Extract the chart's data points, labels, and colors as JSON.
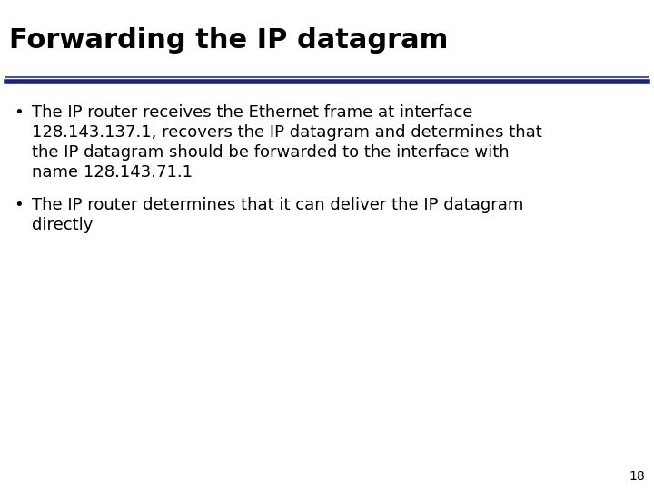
{
  "title": "Forwarding the IP datagram",
  "title_fontsize": 22,
  "title_fontweight": "bold",
  "title_color": "#000000",
  "background_color": "#ffffff",
  "divider_color_top": "#4455aa",
  "divider_color_bottom": "#1a237e",
  "bullet1_line1": "The IP router receives the Ethernet frame at interface",
  "bullet1_line2": "128.143.137.1, recovers the IP datagram and determines that",
  "bullet1_line3": "the IP datagram should be forwarded to the interface with",
  "bullet1_line4": "name 128.143.71.1",
  "bullet2_line1": "The IP router determines that it can deliver the IP datagram",
  "bullet2_line2": "directly",
  "bullet_fontsize": 13,
  "bullet_color": "#000000",
  "page_number": "18",
  "page_number_fontsize": 10,
  "page_number_color": "#000000"
}
